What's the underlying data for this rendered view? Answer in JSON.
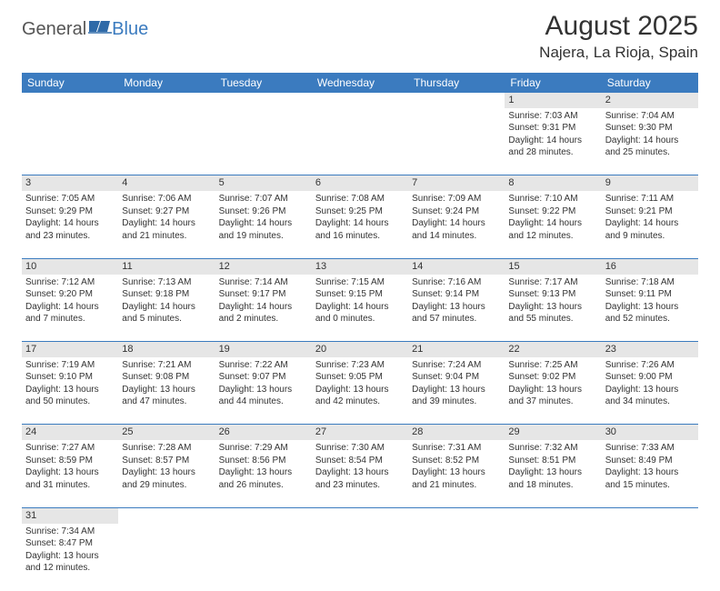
{
  "logo": {
    "general": "General",
    "blue": "Blue"
  },
  "title": "August 2025",
  "location": "Najera, La Rioja, Spain",
  "colors": {
    "header_bg": "#3b7bbf",
    "daynum_bg": "#e6e6e6",
    "rule": "#3b7bbf"
  },
  "daysOfWeek": [
    "Sunday",
    "Monday",
    "Tuesday",
    "Wednesday",
    "Thursday",
    "Friday",
    "Saturday"
  ],
  "weeks": [
    [
      null,
      null,
      null,
      null,
      null,
      {
        "n": "1",
        "sr": "Sunrise: 7:03 AM",
        "ss": "Sunset: 9:31 PM",
        "d1": "Daylight: 14 hours",
        "d2": "and 28 minutes."
      },
      {
        "n": "2",
        "sr": "Sunrise: 7:04 AM",
        "ss": "Sunset: 9:30 PM",
        "d1": "Daylight: 14 hours",
        "d2": "and 25 minutes."
      }
    ],
    [
      {
        "n": "3",
        "sr": "Sunrise: 7:05 AM",
        "ss": "Sunset: 9:29 PM",
        "d1": "Daylight: 14 hours",
        "d2": "and 23 minutes."
      },
      {
        "n": "4",
        "sr": "Sunrise: 7:06 AM",
        "ss": "Sunset: 9:27 PM",
        "d1": "Daylight: 14 hours",
        "d2": "and 21 minutes."
      },
      {
        "n": "5",
        "sr": "Sunrise: 7:07 AM",
        "ss": "Sunset: 9:26 PM",
        "d1": "Daylight: 14 hours",
        "d2": "and 19 minutes."
      },
      {
        "n": "6",
        "sr": "Sunrise: 7:08 AM",
        "ss": "Sunset: 9:25 PM",
        "d1": "Daylight: 14 hours",
        "d2": "and 16 minutes."
      },
      {
        "n": "7",
        "sr": "Sunrise: 7:09 AM",
        "ss": "Sunset: 9:24 PM",
        "d1": "Daylight: 14 hours",
        "d2": "and 14 minutes."
      },
      {
        "n": "8",
        "sr": "Sunrise: 7:10 AM",
        "ss": "Sunset: 9:22 PM",
        "d1": "Daylight: 14 hours",
        "d2": "and 12 minutes."
      },
      {
        "n": "9",
        "sr": "Sunrise: 7:11 AM",
        "ss": "Sunset: 9:21 PM",
        "d1": "Daylight: 14 hours",
        "d2": "and 9 minutes."
      }
    ],
    [
      {
        "n": "10",
        "sr": "Sunrise: 7:12 AM",
        "ss": "Sunset: 9:20 PM",
        "d1": "Daylight: 14 hours",
        "d2": "and 7 minutes."
      },
      {
        "n": "11",
        "sr": "Sunrise: 7:13 AM",
        "ss": "Sunset: 9:18 PM",
        "d1": "Daylight: 14 hours",
        "d2": "and 5 minutes."
      },
      {
        "n": "12",
        "sr": "Sunrise: 7:14 AM",
        "ss": "Sunset: 9:17 PM",
        "d1": "Daylight: 14 hours",
        "d2": "and 2 minutes."
      },
      {
        "n": "13",
        "sr": "Sunrise: 7:15 AM",
        "ss": "Sunset: 9:15 PM",
        "d1": "Daylight: 14 hours",
        "d2": "and 0 minutes."
      },
      {
        "n": "14",
        "sr": "Sunrise: 7:16 AM",
        "ss": "Sunset: 9:14 PM",
        "d1": "Daylight: 13 hours",
        "d2": "and 57 minutes."
      },
      {
        "n": "15",
        "sr": "Sunrise: 7:17 AM",
        "ss": "Sunset: 9:13 PM",
        "d1": "Daylight: 13 hours",
        "d2": "and 55 minutes."
      },
      {
        "n": "16",
        "sr": "Sunrise: 7:18 AM",
        "ss": "Sunset: 9:11 PM",
        "d1": "Daylight: 13 hours",
        "d2": "and 52 minutes."
      }
    ],
    [
      {
        "n": "17",
        "sr": "Sunrise: 7:19 AM",
        "ss": "Sunset: 9:10 PM",
        "d1": "Daylight: 13 hours",
        "d2": "and 50 minutes."
      },
      {
        "n": "18",
        "sr": "Sunrise: 7:21 AM",
        "ss": "Sunset: 9:08 PM",
        "d1": "Daylight: 13 hours",
        "d2": "and 47 minutes."
      },
      {
        "n": "19",
        "sr": "Sunrise: 7:22 AM",
        "ss": "Sunset: 9:07 PM",
        "d1": "Daylight: 13 hours",
        "d2": "and 44 minutes."
      },
      {
        "n": "20",
        "sr": "Sunrise: 7:23 AM",
        "ss": "Sunset: 9:05 PM",
        "d1": "Daylight: 13 hours",
        "d2": "and 42 minutes."
      },
      {
        "n": "21",
        "sr": "Sunrise: 7:24 AM",
        "ss": "Sunset: 9:04 PM",
        "d1": "Daylight: 13 hours",
        "d2": "and 39 minutes."
      },
      {
        "n": "22",
        "sr": "Sunrise: 7:25 AM",
        "ss": "Sunset: 9:02 PM",
        "d1": "Daylight: 13 hours",
        "d2": "and 37 minutes."
      },
      {
        "n": "23",
        "sr": "Sunrise: 7:26 AM",
        "ss": "Sunset: 9:00 PM",
        "d1": "Daylight: 13 hours",
        "d2": "and 34 minutes."
      }
    ],
    [
      {
        "n": "24",
        "sr": "Sunrise: 7:27 AM",
        "ss": "Sunset: 8:59 PM",
        "d1": "Daylight: 13 hours",
        "d2": "and 31 minutes."
      },
      {
        "n": "25",
        "sr": "Sunrise: 7:28 AM",
        "ss": "Sunset: 8:57 PM",
        "d1": "Daylight: 13 hours",
        "d2": "and 29 minutes."
      },
      {
        "n": "26",
        "sr": "Sunrise: 7:29 AM",
        "ss": "Sunset: 8:56 PM",
        "d1": "Daylight: 13 hours",
        "d2": "and 26 minutes."
      },
      {
        "n": "27",
        "sr": "Sunrise: 7:30 AM",
        "ss": "Sunset: 8:54 PM",
        "d1": "Daylight: 13 hours",
        "d2": "and 23 minutes."
      },
      {
        "n": "28",
        "sr": "Sunrise: 7:31 AM",
        "ss": "Sunset: 8:52 PM",
        "d1": "Daylight: 13 hours",
        "d2": "and 21 minutes."
      },
      {
        "n": "29",
        "sr": "Sunrise: 7:32 AM",
        "ss": "Sunset: 8:51 PM",
        "d1": "Daylight: 13 hours",
        "d2": "and 18 minutes."
      },
      {
        "n": "30",
        "sr": "Sunrise: 7:33 AM",
        "ss": "Sunset: 8:49 PM",
        "d1": "Daylight: 13 hours",
        "d2": "and 15 minutes."
      }
    ],
    [
      {
        "n": "31",
        "sr": "Sunrise: 7:34 AM",
        "ss": "Sunset: 8:47 PM",
        "d1": "Daylight: 13 hours",
        "d2": "and 12 minutes."
      },
      null,
      null,
      null,
      null,
      null,
      null
    ]
  ]
}
